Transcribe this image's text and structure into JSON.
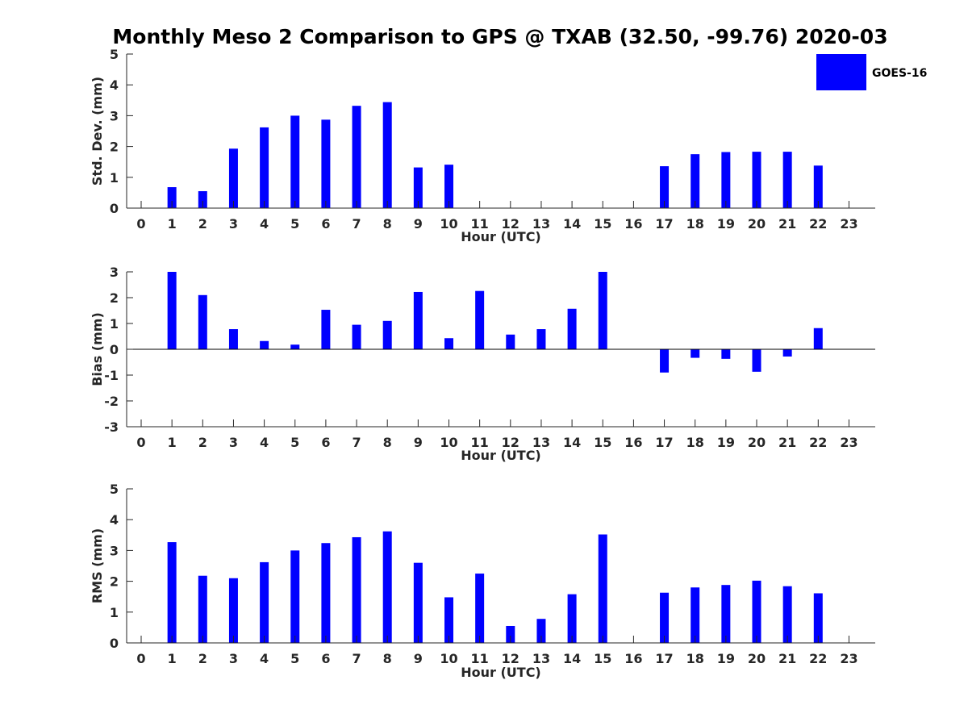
{
  "chart_data": [
    {
      "type": "bar",
      "title": "Monthly Meso 2 Comparison to GPS @ TXAB (32.50, -99.76) 2020-03",
      "xlabel": "Hour (UTC)",
      "ylabel": "Std. Dev. (mm)",
      "ylim": [
        0,
        5
      ],
      "yticks": [
        0,
        1,
        2,
        3,
        4,
        5
      ],
      "categories": [
        "0",
        "1",
        "2",
        "3",
        "4",
        "5",
        "6",
        "7",
        "8",
        "9",
        "10",
        "11",
        "12",
        "13",
        "14",
        "15",
        "16",
        "17",
        "18",
        "19",
        "20",
        "21",
        "22",
        "23"
      ],
      "series": [
        {
          "name": "GOES-16",
          "color": "#0000ff",
          "values": [
            null,
            0.68,
            0.55,
            1.93,
            2.62,
            3.0,
            2.87,
            3.32,
            3.44,
            1.32,
            1.41,
            null,
            null,
            null,
            null,
            null,
            null,
            1.36,
            1.75,
            1.82,
            1.83,
            1.83,
            1.38,
            null
          ]
        }
      ],
      "legend": "top-right",
      "grid": false
    },
    {
      "type": "bar",
      "xlabel": "Hour (UTC)",
      "ylabel": "Bias (mm)",
      "ylim": [
        -3,
        3
      ],
      "yticks": [
        -3,
        -2,
        -1,
        0,
        1,
        2,
        3
      ],
      "categories": [
        "0",
        "1",
        "2",
        "3",
        "4",
        "5",
        "6",
        "7",
        "8",
        "9",
        "10",
        "11",
        "12",
        "13",
        "14",
        "15",
        "16",
        "17",
        "18",
        "19",
        "20",
        "21",
        "22",
        "23"
      ],
      "series": [
        {
          "name": "GOES-16",
          "color": "#0000ff",
          "values": [
            null,
            3.0,
            2.1,
            0.78,
            0.32,
            0.18,
            1.53,
            0.95,
            1.1,
            2.22,
            0.43,
            2.26,
            0.57,
            0.78,
            1.57,
            3.0,
            null,
            -0.9,
            -0.33,
            -0.37,
            -0.87,
            -0.28,
            0.82,
            null
          ]
        }
      ],
      "grid": false
    },
    {
      "type": "bar",
      "xlabel": "Hour (UTC)",
      "ylabel": "RMS (mm)",
      "ylim": [
        0,
        5
      ],
      "yticks": [
        0,
        1,
        2,
        3,
        4,
        5
      ],
      "categories": [
        "0",
        "1",
        "2",
        "3",
        "4",
        "5",
        "6",
        "7",
        "8",
        "9",
        "10",
        "11",
        "12",
        "13",
        "14",
        "15",
        "16",
        "17",
        "18",
        "19",
        "20",
        "21",
        "22",
        "23"
      ],
      "series": [
        {
          "name": "GOES-16",
          "color": "#0000ff",
          "values": [
            null,
            3.27,
            2.18,
            2.1,
            2.62,
            3.0,
            3.24,
            3.43,
            3.62,
            2.6,
            1.48,
            2.25,
            0.55,
            0.78,
            1.58,
            3.52,
            null,
            1.63,
            1.8,
            1.88,
            2.02,
            1.84,
            1.61,
            null
          ]
        }
      ],
      "grid": false
    }
  ],
  "legend": {
    "label": "GOES-16",
    "color": "#0000ff"
  }
}
